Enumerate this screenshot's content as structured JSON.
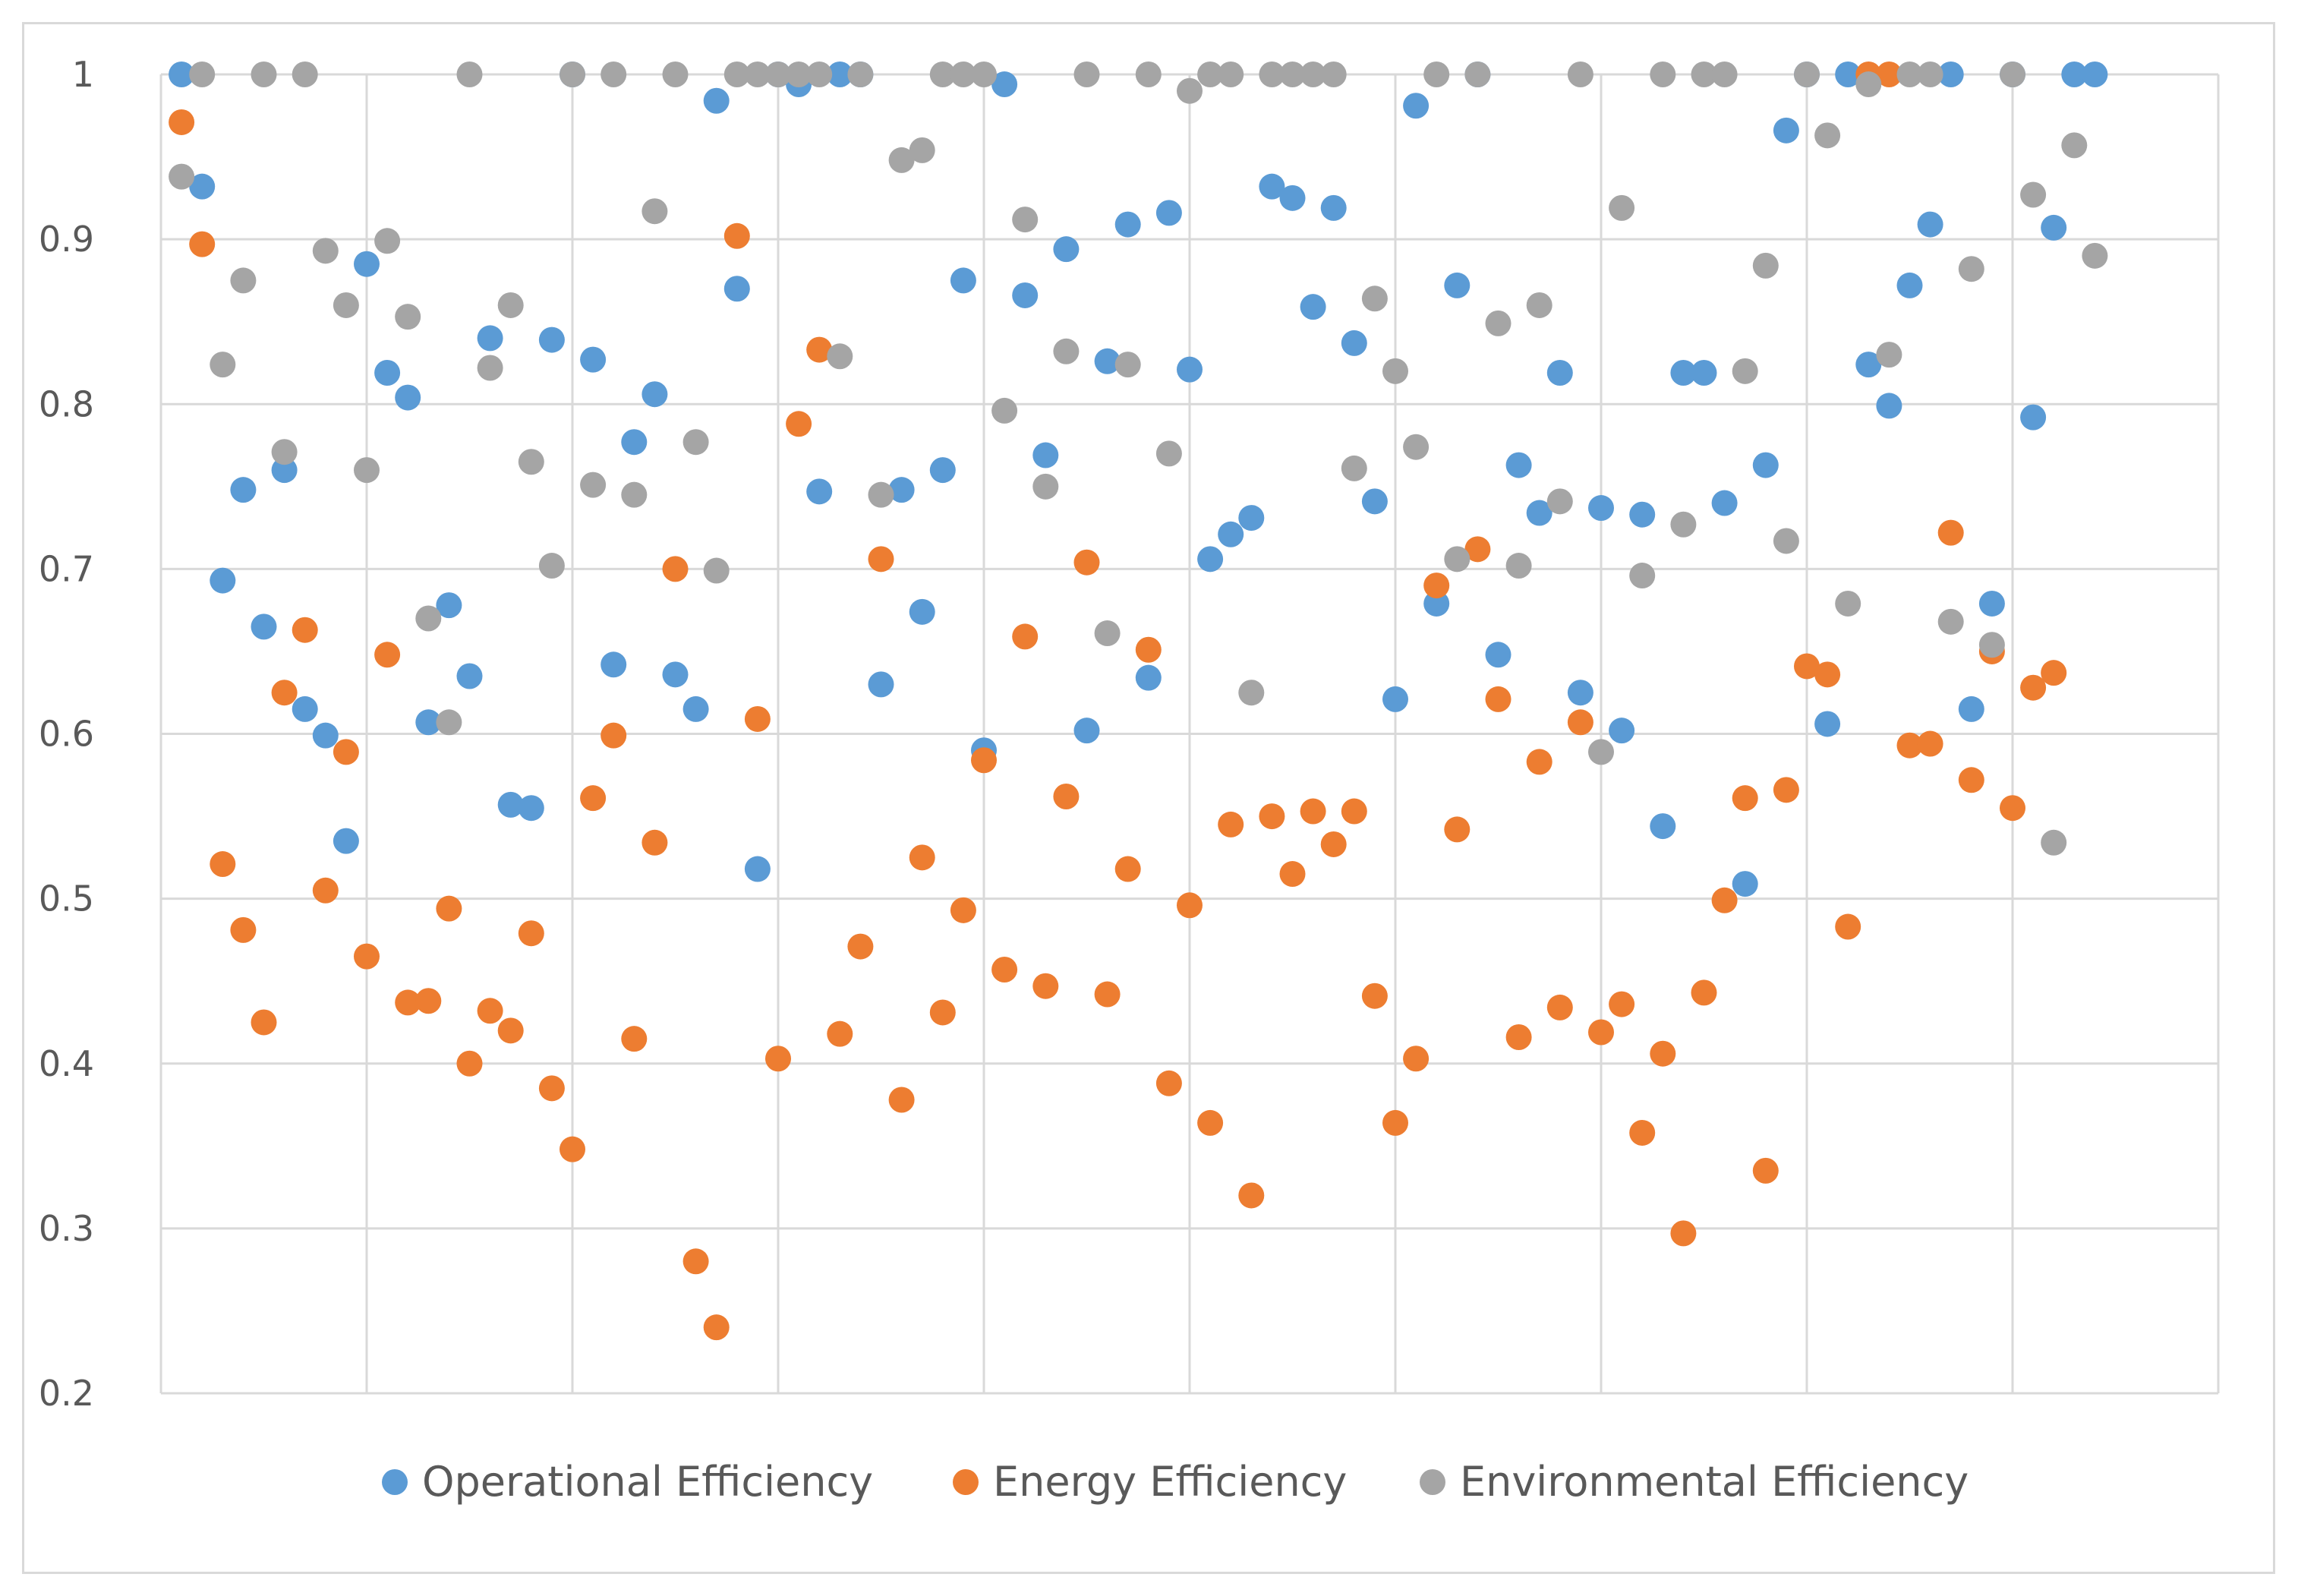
{
  "chart_data": {
    "type": "scatter",
    "title": "",
    "xlabel": "",
    "ylabel": "",
    "ylim": [
      0.2,
      1.0
    ],
    "yticks": [
      0.2,
      0.3,
      0.4,
      0.5,
      0.6,
      0.7,
      0.8,
      0.9,
      1.0
    ],
    "ytick_labels": [
      "0.2",
      "0.3",
      "0.4",
      "0.5",
      "0.6",
      "0.7",
      "0.8",
      "0.9",
      "1"
    ],
    "xlim": [
      0,
      100
    ],
    "xgrid_step": 10,
    "grid": true,
    "legend_position": "bottom",
    "series": [
      {
        "name": "Operational Efficiency",
        "color": "#5b9bd5",
        "x": [
          1,
          2,
          3,
          4,
          5,
          6,
          7,
          8,
          9,
          10,
          11,
          12,
          13,
          14,
          15,
          16,
          17,
          18,
          19,
          20,
          21,
          22,
          23,
          24,
          25,
          26,
          27,
          28,
          29,
          30,
          31,
          32,
          33,
          34,
          35,
          36,
          37,
          38,
          39,
          40,
          41,
          42,
          43,
          44,
          45,
          46,
          47,
          48,
          49,
          50,
          51,
          52,
          53,
          54,
          55,
          56,
          57,
          58,
          59,
          60,
          61,
          62,
          63,
          64,
          65,
          66,
          67,
          68,
          69,
          70,
          71,
          72,
          73,
          74,
          75,
          76,
          77,
          78,
          79,
          80,
          81,
          82,
          83,
          84,
          85,
          86,
          87,
          88,
          89,
          90,
          91,
          92,
          93,
          94
        ],
        "values": [
          1.0,
          0.932,
          0.693,
          0.748,
          0.665,
          0.76,
          0.615,
          0.599,
          0.535,
          0.885,
          0.819,
          0.804,
          0.607,
          0.678,
          0.635,
          0.84,
          0.557,
          0.555,
          0.839,
          1.0,
          0.827,
          0.642,
          0.777,
          0.806,
          0.636,
          0.615,
          0.984,
          0.87,
          0.518,
          1.0,
          0.994,
          0.747,
          1.0,
          1.0,
          0.63,
          0.748,
          0.674,
          0.76,
          0.875,
          0.59,
          0.994,
          0.866,
          0.769,
          0.894,
          0.602,
          0.826,
          0.909,
          0.634,
          0.916,
          0.821,
          0.706,
          0.721,
          0.731,
          0.932,
          0.925,
          0.859,
          0.919,
          0.837,
          0.741,
          0.621,
          0.981,
          0.679,
          0.872,
          1.0,
          0.648,
          0.763,
          0.734,
          0.819,
          0.625,
          0.737,
          0.602,
          0.733,
          0.544,
          0.819,
          0.819,
          0.74,
          0.509,
          0.763,
          0.966,
          1.0,
          0.606,
          1.0,
          0.824,
          0.799,
          0.872,
          0.909,
          1.0,
          0.615,
          0.679,
          1.0,
          0.792,
          0.907,
          1.0,
          1.0
        ]
      },
      {
        "name": "Energy Efficiency",
        "color": "#ed7d31",
        "x": [
          1,
          2,
          3,
          4,
          5,
          6,
          7,
          8,
          9,
          10,
          11,
          12,
          13,
          14,
          15,
          16,
          17,
          18,
          19,
          20,
          21,
          22,
          23,
          24,
          25,
          26,
          27,
          28,
          29,
          30,
          31,
          32,
          33,
          34,
          35,
          36,
          37,
          38,
          39,
          40,
          41,
          42,
          43,
          44,
          45,
          46,
          47,
          48,
          49,
          50,
          51,
          52,
          53,
          54,
          55,
          56,
          57,
          58,
          59,
          60,
          61,
          62,
          63,
          64,
          65,
          66,
          67,
          68,
          69,
          70,
          71,
          72,
          73,
          74,
          75,
          76,
          77,
          78,
          79,
          80,
          81,
          82,
          83,
          84,
          85,
          86,
          87,
          88,
          89,
          90,
          91,
          92
        ],
        "values": [
          0.971,
          0.897,
          0.521,
          0.481,
          0.425,
          0.625,
          0.663,
          0.505,
          0.589,
          0.465,
          0.648,
          0.437,
          0.438,
          0.494,
          0.4,
          0.432,
          0.42,
          0.479,
          0.385,
          0.348,
          0.561,
          0.599,
          0.415,
          0.534,
          0.7,
          0.28,
          0.24,
          0.902,
          0.609,
          0.403,
          0.788,
          0.833,
          0.418,
          0.471,
          0.706,
          0.378,
          0.525,
          0.431,
          0.493,
          0.584,
          0.457,
          0.659,
          0.447,
          0.562,
          0.704,
          0.442,
          0.518,
          0.651,
          0.388,
          0.496,
          0.364,
          0.545,
          0.32,
          0.55,
          0.515,
          0.553,
          0.533,
          0.553,
          0.441,
          0.364,
          0.403,
          0.69,
          0.542,
          0.712,
          0.621,
          0.416,
          0.583,
          0.434,
          0.607,
          0.419,
          0.436,
          0.358,
          0.406,
          0.297,
          0.443,
          0.499,
          0.561,
          0.335,
          0.566,
          0.641,
          0.636,
          0.483,
          1.0,
          1.0,
          0.593,
          0.594,
          0.722,
          0.572,
          0.65,
          0.555,
          0.628,
          0.637
        ]
      },
      {
        "name": "Environmental Efficiency",
        "color": "#a5a5a5",
        "x": [
          1,
          2,
          3,
          4,
          5,
          6,
          7,
          8,
          9,
          10,
          11,
          12,
          13,
          14,
          15,
          16,
          17,
          18,
          19,
          20,
          21,
          22,
          23,
          24,
          25,
          26,
          27,
          28,
          29,
          30,
          31,
          32,
          33,
          34,
          35,
          36,
          37,
          38,
          39,
          40,
          41,
          42,
          43,
          44,
          45,
          46,
          47,
          48,
          49,
          50,
          51,
          52,
          53,
          54,
          55,
          56,
          57,
          58,
          59,
          60,
          61,
          62,
          63,
          64,
          65,
          66,
          67,
          68,
          69,
          70,
          71,
          72,
          73,
          74,
          75,
          76,
          77,
          78,
          79,
          80,
          81,
          82,
          83,
          84,
          85,
          86,
          87,
          88,
          89,
          90,
          91,
          92,
          93,
          94
        ],
        "values": [
          0.938,
          1.0,
          0.824,
          0.875,
          1.0,
          0.771,
          1.0,
          0.893,
          0.86,
          0.76,
          0.899,
          0.853,
          0.67,
          0.607,
          1.0,
          0.822,
          0.86,
          0.765,
          0.702,
          1.0,
          0.751,
          1.0,
          0.745,
          0.917,
          1.0,
          0.777,
          0.699,
          1.0,
          1.0,
          1.0,
          1.0,
          1.0,
          0.829,
          1.0,
          0.745,
          0.948,
          0.954,
          1.0,
          1.0,
          1.0,
          0.796,
          0.912,
          0.75,
          0.832,
          1.0,
          0.661,
          0.824,
          1.0,
          0.77,
          0.99,
          1.0,
          1.0,
          0.625,
          1.0,
          1.0,
          1.0,
          1.0,
          0.761,
          0.864,
          0.82,
          0.774,
          1.0,
          0.706,
          1.0,
          0.849,
          0.702,
          0.86,
          0.741,
          1.0,
          0.589,
          0.919,
          0.696,
          1.0,
          0.727,
          1.0,
          1.0,
          0.82,
          0.884,
          0.717,
          1.0,
          0.963,
          0.679,
          0.994,
          0.83,
          1.0,
          1.0,
          0.668,
          0.882,
          0.654,
          1.0,
          0.927,
          0.534,
          0.957,
          0.89
        ]
      }
    ]
  }
}
